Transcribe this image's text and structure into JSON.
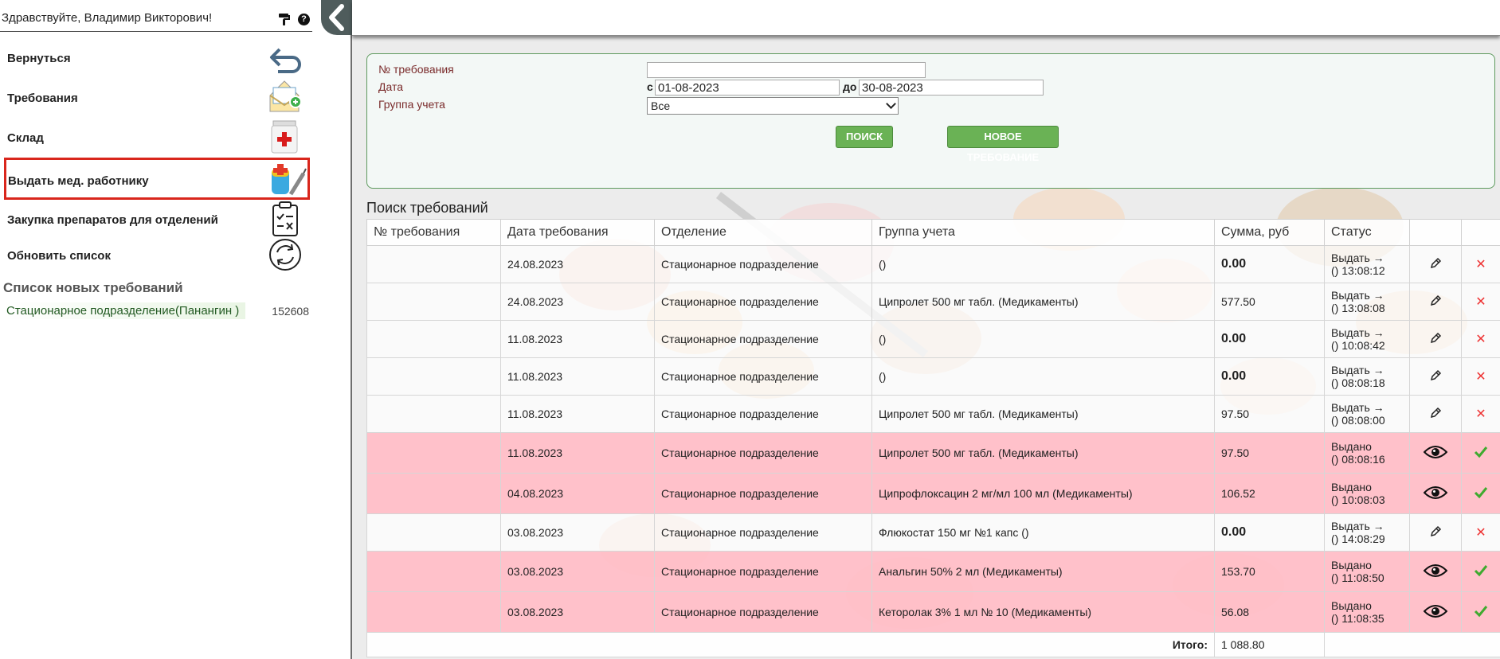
{
  "sidebar": {
    "greeting": "Здравствуйте, Владимир Викторович!",
    "menu": [
      {
        "label": "Вернуться",
        "icon": "return-arrow-icon"
      },
      {
        "label": "Требования",
        "icon": "envelope-add-icon"
      },
      {
        "label": "Склад",
        "icon": "first-aid-kit-icon"
      },
      {
        "label": "Выдать мед. работнику",
        "icon": "medicine-syringe-icon",
        "active": true
      },
      {
        "label": "Закупка препаратов для отделений",
        "icon": "checklist-icon"
      },
      {
        "label": "Обновить список",
        "icon": "refresh-icon"
      }
    ],
    "new_list_title": "Список новых требований",
    "new_list_items": [
      {
        "name": "Стационарное подразделение(Панангин )",
        "number": "152608"
      }
    ]
  },
  "filter": {
    "req_number_label": "№ требования",
    "req_number_value": "",
    "date_label": "Дата",
    "date_from_prefix": "с",
    "date_from": "01-08-2023",
    "date_to_prefix": "до",
    "date_to": "30-08-2023",
    "group_label": "Группа учета",
    "group_value": "Все",
    "search_button": "ПОИСК",
    "new_button": "НОВОЕ ТРЕБОВАНИЕ"
  },
  "table": {
    "title": "Поиск требований",
    "columns": [
      "№ требования",
      "Дата требования",
      "Отделение",
      "Группа учета",
      "Сумма, руб",
      "Статус",
      "",
      ""
    ],
    "rows": [
      {
        "num": "",
        "date": "24.08.2023",
        "dept": "Стационарное подразделение",
        "group": "()",
        "sum": "0.00",
        "status1": "Выдать →",
        "status2": "() 13:08:12",
        "issued": false
      },
      {
        "num": "",
        "date": "24.08.2023",
        "dept": "Стационарное подразделение",
        "group": "Ципролет 500 мг табл. (Медикаменты)",
        "sum": "577.50",
        "status1": "Выдать →",
        "status2": "() 13:08:08",
        "issued": false
      },
      {
        "num": "",
        "date": "11.08.2023",
        "dept": "Стационарное подразделение",
        "group": "()",
        "sum": "0.00",
        "status1": "Выдать →",
        "status2": "() 10:08:42",
        "issued": false
      },
      {
        "num": "",
        "date": "11.08.2023",
        "dept": "Стационарное подразделение",
        "group": "()",
        "sum": "0.00",
        "status1": "Выдать →",
        "status2": "() 08:08:18",
        "issued": false
      },
      {
        "num": "",
        "date": "11.08.2023",
        "dept": "Стационарное подразделение",
        "group": "Ципролет 500 мг табл. (Медикаменты)",
        "sum": "97.50",
        "status1": "Выдать →",
        "status2": "() 08:08:00",
        "issued": false
      },
      {
        "num": "",
        "date": "11.08.2023",
        "dept": "Стационарное подразделение",
        "group": "Ципролет 500 мг табл. (Медикаменты)",
        "sum": "97.50",
        "status1": "Выдано",
        "status2": "() 08:08:16",
        "issued": true
      },
      {
        "num": "",
        "date": "04.08.2023",
        "dept": "Стационарное подразделение",
        "group": "Ципрофлоксацин 2 мг/мл 100 мл (Медикаменты)",
        "sum": "106.52",
        "status1": "Выдано",
        "status2": "() 10:08:03",
        "issued": true
      },
      {
        "num": "",
        "date": "03.08.2023",
        "dept": "Стационарное подразделение",
        "group": "Флюкостат 150 мг №1 капс ()",
        "sum": "0.00",
        "status1": "Выдать →",
        "status2": "() 14:08:29",
        "issued": false
      },
      {
        "num": "",
        "date": "03.08.2023",
        "dept": "Стационарное подразделение",
        "group": "Анальгин 50% 2 мл (Медикаменты)",
        "sum": "153.70",
        "status1": "Выдано",
        "status2": "() 11:08:50",
        "issued": true
      },
      {
        "num": "",
        "date": "03.08.2023",
        "dept": "Стационарное подразделение",
        "group": "Кеторолак 3% 1 мл № 10 (Медикаменты)",
        "sum": "56.08",
        "status1": "Выдано",
        "status2": "() 11:08:35",
        "issued": true
      }
    ],
    "total_label": "Итого:",
    "total_value": "1 088.80"
  },
  "colors": {
    "accent_green": "#6ab255",
    "issued_row": "#ffbec8",
    "active_border": "#d9261c",
    "delete_x": "#ee3333"
  }
}
